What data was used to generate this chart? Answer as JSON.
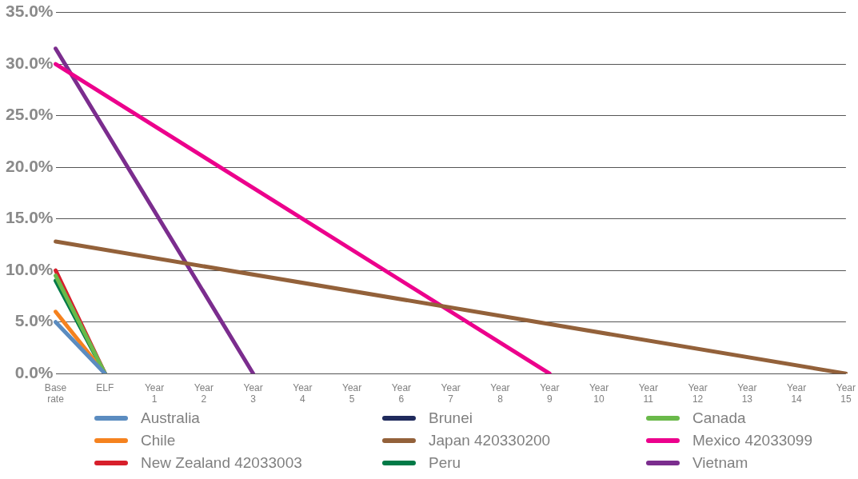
{
  "chart_data": {
    "type": "line",
    "categories": [
      "Base rate",
      "ELF",
      "Year 1",
      "Year 2",
      "Year 3",
      "Year 4",
      "Year 5",
      "Year 6",
      "Year 7",
      "Year 8",
      "Year 9",
      "Year 10",
      "Year 11",
      "Year 12",
      "Year 13",
      "Year 14",
      "Year 15"
    ],
    "series": [
      {
        "name": "Australia",
        "color": "#5b8cc0",
        "values": [
          5,
          0,
          null,
          null,
          null,
          null,
          null,
          null,
          null,
          null,
          null,
          null,
          null,
          null,
          null,
          null,
          null
        ]
      },
      {
        "name": "Brunei",
        "color": "#1f2a5c",
        "values": [
          null,
          null,
          null,
          null,
          null,
          null,
          null,
          null,
          null,
          null,
          null,
          null,
          null,
          null,
          null,
          null,
          null
        ]
      },
      {
        "name": "Canada",
        "color": "#6ab94a",
        "values": [
          9.5,
          0,
          null,
          null,
          null,
          null,
          null,
          null,
          null,
          null,
          null,
          null,
          null,
          null,
          null,
          null,
          null
        ]
      },
      {
        "name": "Chile",
        "color": "#f5821f",
        "values": [
          6,
          0,
          null,
          null,
          null,
          null,
          null,
          null,
          null,
          null,
          null,
          null,
          null,
          null,
          null,
          null,
          null
        ]
      },
      {
        "name": "Japan 420330200",
        "color": "#93613a",
        "values": [
          12.8,
          null,
          null,
          null,
          null,
          null,
          null,
          null,
          null,
          null,
          null,
          null,
          null,
          null,
          null,
          null,
          0
        ]
      },
      {
        "name": "Mexico 42033099",
        "color": "#ec008c",
        "values": [
          30,
          null,
          null,
          null,
          null,
          null,
          null,
          null,
          null,
          null,
          0,
          null,
          null,
          null,
          null,
          null,
          null
        ]
      },
      {
        "name": "New Zealand 42033003",
        "color": "#d71f2b",
        "values": [
          10,
          0,
          null,
          null,
          null,
          null,
          null,
          null,
          null,
          null,
          null,
          null,
          null,
          null,
          null,
          null,
          null
        ]
      },
      {
        "name": "Peru",
        "color": "#007a47",
        "values": [
          9,
          0,
          null,
          null,
          null,
          null,
          null,
          null,
          null,
          null,
          null,
          null,
          null,
          null,
          null,
          null,
          null
        ]
      },
      {
        "name": "Vietnam",
        "color": "#7b2d8e",
        "values": [
          31.5,
          null,
          null,
          null,
          0,
          null,
          null,
          null,
          null,
          null,
          null,
          null,
          null,
          null,
          null,
          null,
          null
        ]
      }
    ],
    "ylim": [
      0,
      35
    ],
    "yticks": [
      {
        "value": 0,
        "label": "0.0%"
      },
      {
        "value": 5,
        "label": "5.0%"
      },
      {
        "value": 10,
        "label": "10.0%"
      },
      {
        "value": 15,
        "label": "15.0%"
      },
      {
        "value": 20,
        "label": "20.0%"
      },
      {
        "value": 25,
        "label": "25.0%"
      },
      {
        "value": 30,
        "label": "30.0%"
      },
      {
        "value": 35,
        "label": "35.0%"
      }
    ],
    "grid": "y",
    "legend": "bottom",
    "marker": "none",
    "line_style": "solid"
  }
}
